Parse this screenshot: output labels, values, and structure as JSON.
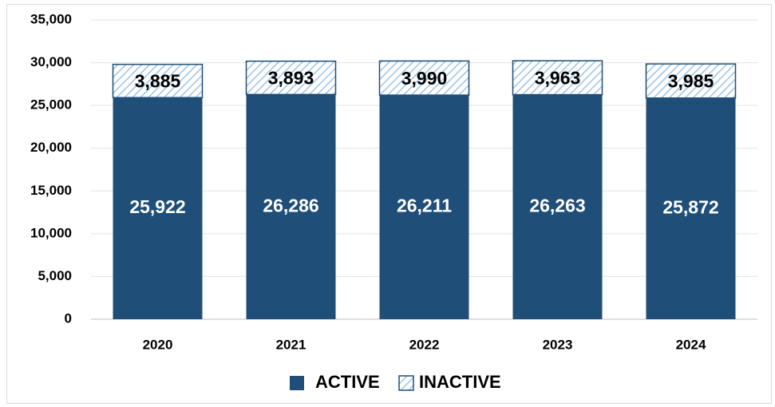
{
  "chart_data": {
    "type": "stacked_bar",
    "categories": [
      "2020",
      "2021",
      "2022",
      "2023",
      "2024"
    ],
    "series": [
      {
        "name": "ACTIVE",
        "color": "#1f4e79",
        "values": [
          25922,
          26286,
          26211,
          26263,
          25872
        ],
        "value_labels": [
          "25,922",
          "26,286",
          "26,211",
          "26,263",
          "25,872"
        ]
      },
      {
        "name": "INACTIVE",
        "color": "#9dc3e6",
        "values": [
          3885,
          3893,
          3990,
          3963,
          3985
        ],
        "value_labels": [
          "3,885",
          "3,893",
          "3,990",
          "3,963",
          "3,985"
        ]
      }
    ],
    "ylim": [
      0,
      35000
    ],
    "yticks": [
      0,
      {
        "value": 5000,
        "label": "5,000"
      },
      {
        "value": 10000,
        "label": "10,000"
      },
      {
        "value": 15000,
        "label": "15,000"
      },
      {
        "value": 20000,
        "label": "20,000"
      },
      {
        "value": 25000,
        "label": "25,000"
      },
      {
        "value": 30000,
        "label": "30,000"
      },
      {
        "value": 35000,
        "label": "35,000"
      }
    ],
    "grid": true,
    "legend": "bottom"
  }
}
